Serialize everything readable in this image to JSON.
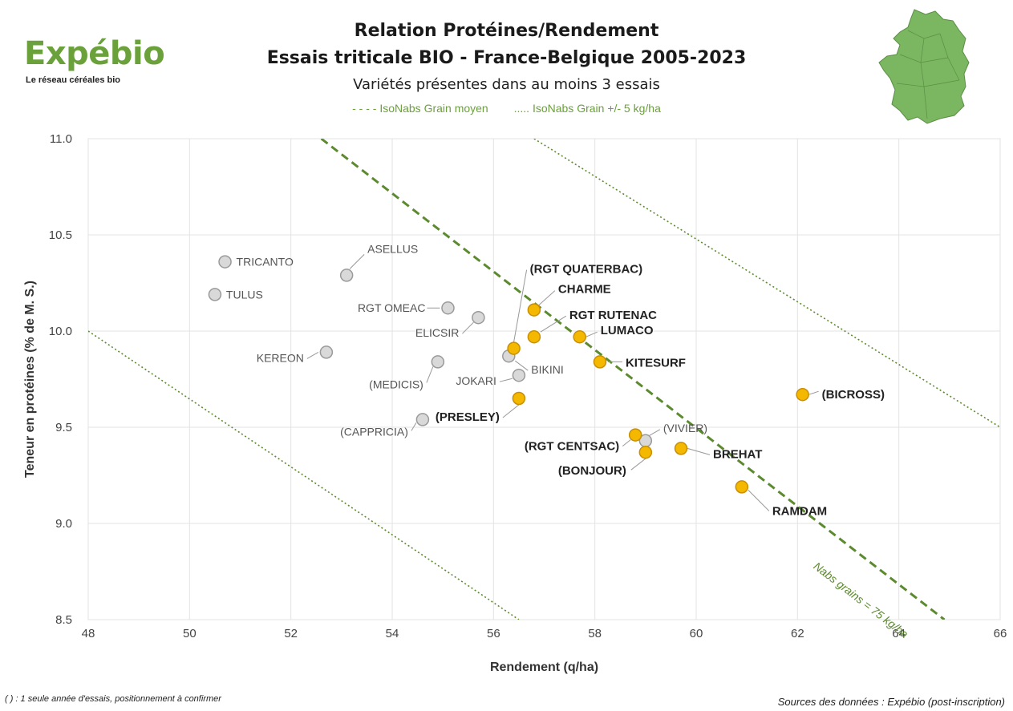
{
  "logo": {
    "name": "Expébio",
    "tagline": "Le réseau céréales bio"
  },
  "title_line1": "Relation Protéines/Rendement",
  "title_line2": "Essais triticale BIO - France-Belgique 2005-2023",
  "subtitle": "Variétés présentes dans au moins 3 essais",
  "legend": {
    "dashed": "- - - - IsoNabs Grain moyen",
    "dotted": "..... IsoNabs Grain +/- 5 kg/ha"
  },
  "footnote": "( ) : 1 seule année d'essais, positionnement à confirmer",
  "source": "Sources des données : Expébio (post-inscription)",
  "colors": {
    "gray_point": "#d9d9d9",
    "orange_point": "#f5b800",
    "iso_line": "#5c8a2e",
    "accent_green": "#6aa13a"
  },
  "chart_data": {
    "type": "scatter",
    "xlabel": "Rendement (q/ha)",
    "ylabel": "Teneur en protéines (% de M. S.)",
    "xlim": [
      48,
      66
    ],
    "ylim": [
      8.5,
      11.0
    ],
    "xticks": [
      "48",
      "50",
      "52",
      "54",
      "56",
      "58",
      "60",
      "62",
      "64",
      "66"
    ],
    "yticks": [
      "8.5",
      "9.0",
      "9.5",
      "10.0",
      "10.5",
      "11.0"
    ],
    "grid": true,
    "iso_lines": [
      {
        "style": "dashed",
        "points": [
          [
            52.6,
            11.0
          ],
          [
            64.9,
            8.5
          ]
        ],
        "label": "Nabs grains = 75 kg/ha"
      },
      {
        "style": "dotted",
        "points": [
          [
            48,
            10.0
          ],
          [
            56.5,
            8.5
          ]
        ]
      },
      {
        "style": "dotted",
        "points": [
          [
            56.8,
            11.0
          ],
          [
            66,
            9.5
          ]
        ]
      }
    ],
    "series": [
      {
        "group": "gray",
        "points": [
          {
            "name": "TRICANTO",
            "x": 50.7,
            "y": 10.36
          },
          {
            "name": "TULUS",
            "x": 50.5,
            "y": 10.19
          },
          {
            "name": "ASELLUS",
            "x": 53.1,
            "y": 10.29
          },
          {
            "name": "RGT OMEAC",
            "x": 55.1,
            "y": 10.12
          },
          {
            "name": "ELICSIR",
            "x": 55.7,
            "y": 10.07
          },
          {
            "name": "KEREON",
            "x": 52.7,
            "y": 9.89
          },
          {
            "name": "(MEDICIS)",
            "x": 54.9,
            "y": 9.84
          },
          {
            "name": "BIKINI",
            "x": 56.3,
            "y": 9.87
          },
          {
            "name": "JOKARI",
            "x": 56.5,
            "y": 9.77
          },
          {
            "name": "(CAPPRICIA)",
            "x": 54.6,
            "y": 9.54
          },
          {
            "name": "(VIVIER)",
            "x": 59.0,
            "y": 9.43
          }
        ]
      },
      {
        "group": "orange",
        "points": [
          {
            "name": "(RGT QUATERBAC)",
            "x": 56.4,
            "y": 9.91
          },
          {
            "name": "CHARME",
            "x": 56.8,
            "y": 10.11
          },
          {
            "name": "RGT RUTENAC",
            "x": 56.8,
            "y": 9.97
          },
          {
            "name": "LUMACO",
            "x": 57.7,
            "y": 9.97
          },
          {
            "name": "KITESURF",
            "x": 58.1,
            "y": 9.84
          },
          {
            "name": "(PRESLEY)",
            "x": 56.5,
            "y": 9.65
          },
          {
            "name": "(BICROSS)",
            "x": 62.1,
            "y": 9.67
          },
          {
            "name": "(RGT CENTSAC)",
            "x": 58.8,
            "y": 9.46
          },
          {
            "name": "BREHAT",
            "x": 59.7,
            "y": 9.39
          },
          {
            "name": "(BONJOUR)",
            "x": 59.0,
            "y": 9.37
          },
          {
            "name": "RAMDAM",
            "x": 60.9,
            "y": 9.19
          }
        ]
      }
    ]
  }
}
